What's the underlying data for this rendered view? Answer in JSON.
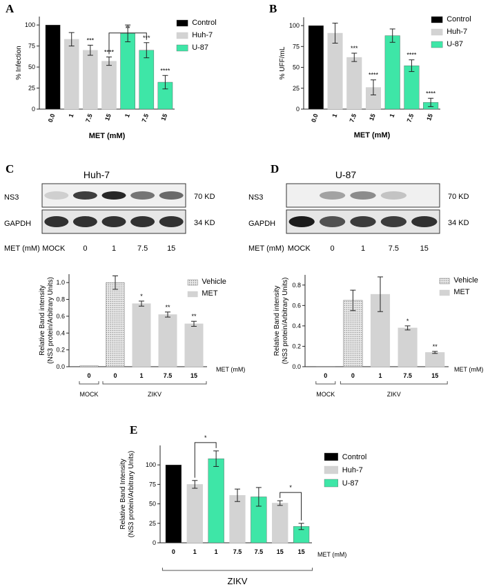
{
  "colors": {
    "control": "#000000",
    "huh7": "#d3d3d3",
    "u87": "#3ee6a7",
    "vehicle": "#d8d8d8"
  },
  "chart_data": [
    {
      "panel": "A",
      "type": "bar",
      "categories": [
        "0.0",
        "1",
        "7.5",
        "15",
        "1",
        "7.5",
        "15"
      ],
      "groups": [
        "Control",
        "Huh-7",
        "Huh-7",
        "Huh-7",
        "U-87",
        "U-87",
        "U-87"
      ],
      "values": [
        100,
        83,
        70,
        57,
        90,
        70,
        32
      ],
      "errors": [
        0,
        8,
        6,
        5,
        10,
        9,
        8
      ],
      "sig": [
        "",
        "",
        "***",
        "****",
        "",
        "***",
        "****"
      ],
      "bracket": {
        "from": 3,
        "to": 5,
        "label": "**"
      },
      "ylabel": "% Infection",
      "xlabel": "MET (mM)",
      "ylim": [
        0,
        110
      ],
      "yticks": [
        "0",
        "25",
        "50",
        "75",
        "100"
      ],
      "legend": [
        "Control",
        "Huh-7",
        "U-87"
      ]
    },
    {
      "panel": "B",
      "type": "bar",
      "categories": [
        "0.0",
        "1",
        "7.5",
        "15",
        "1",
        "7.5",
        "15"
      ],
      "groups": [
        "Control",
        "Huh-7",
        "Huh-7",
        "Huh-7",
        "U-87",
        "U-87",
        "U-87"
      ],
      "values": [
        100,
        91,
        62,
        26,
        88,
        52,
        8
      ],
      "errors": [
        0,
        12,
        5,
        9,
        8,
        7,
        5
      ],
      "sig": [
        "",
        "",
        "***",
        "****",
        "",
        "****",
        "****"
      ],
      "ylabel": "% UFF/mL",
      "xlabel": "MET (mM)",
      "ylim": [
        0,
        110
      ],
      "yticks": [
        "0",
        "25",
        "50",
        "75",
        "100"
      ],
      "legend": [
        "Control",
        "Huh-7",
        "U-87"
      ]
    },
    {
      "panel": "C",
      "type": "bar",
      "categories": [
        "0",
        "0",
        "1",
        "7.5",
        "15"
      ],
      "groups": [
        "Vehicle",
        "Vehicle",
        "MET",
        "MET",
        "MET"
      ],
      "values": [
        0.01,
        1.0,
        0.75,
        0.62,
        0.51
      ],
      "errors": [
        0,
        0.08,
        0.03,
        0.03,
        0.03
      ],
      "sig": [
        "",
        "",
        "*",
        "**",
        "**"
      ],
      "ylabel": "Relative Band intensity",
      "ylabel2": "(NS3 protein/Arbitrary Units)",
      "xlabel": "MET (mM)",
      "ylim": [
        0,
        1.1
      ],
      "yticks": [
        "0.0",
        "0.2",
        "0.4",
        "0.6",
        "0.8",
        "1.0"
      ],
      "legend": [
        "Vehicle",
        "MET"
      ],
      "groupings": [
        "MOCK",
        "ZIKV"
      ]
    },
    {
      "panel": "D",
      "type": "bar",
      "categories": [
        "0",
        "0",
        "1",
        "7.5",
        "15"
      ],
      "groups": [
        "Vehicle",
        "Vehicle",
        "MET",
        "MET",
        "MET"
      ],
      "values": [
        0.0,
        0.65,
        0.71,
        0.38,
        0.14
      ],
      "errors": [
        0,
        0.1,
        0.17,
        0.02,
        0.01
      ],
      "sig": [
        "",
        "",
        "",
        "*",
        "**"
      ],
      "ylabel": "Relative Band intensity",
      "ylabel2": "(NS3 protein/Arbitrary Units)",
      "xlabel": "MET (mM)",
      "ylim": [
        0,
        0.9
      ],
      "yticks": [
        "0.0",
        "0.2",
        "0.4",
        "0.6",
        "0.8"
      ],
      "legend": [
        "Vehicle",
        "MET"
      ],
      "groupings": [
        "MOCK",
        "ZIKV"
      ]
    },
    {
      "panel": "E",
      "type": "bar",
      "categories": [
        "0",
        "1",
        "1",
        "7.5",
        "7.5",
        "15",
        "15"
      ],
      "groups": [
        "Control",
        "Huh-7",
        "U-87",
        "Huh-7",
        "U-87",
        "Huh-7",
        "U-87"
      ],
      "values": [
        100,
        75,
        108,
        61,
        59,
        51,
        21
      ],
      "errors": [
        0,
        5,
        10,
        8,
        12,
        3,
        4
      ],
      "brackets": [
        {
          "from": 1,
          "to": 2,
          "label": "*"
        },
        {
          "from": 5,
          "to": 6,
          "label": "*"
        }
      ],
      "ylabel": "Relative Band Intensity",
      "ylabel2": "(NS3 protein/Arbitrary Units)",
      "xlabel": "MET (mM)",
      "ylim": [
        0,
        125
      ],
      "yticks": [
        "0",
        "25",
        "50",
        "75",
        "100"
      ],
      "legend": [
        "Control",
        "Huh-7",
        "U-87"
      ],
      "groupings": [
        "ZIKV"
      ]
    }
  ],
  "blots": {
    "C": {
      "title": "Huh-7",
      "rows": [
        {
          "name": "NS3",
          "kd": "70 KD"
        },
        {
          "name": "GAPDH",
          "kd": "34 KD"
        }
      ],
      "met_label": "MET (mM)",
      "lanes": [
        "MOCK",
        "0",
        "1",
        "7.5",
        "15"
      ]
    },
    "D": {
      "title": "U-87",
      "rows": [
        {
          "name": "NS3",
          "kd": "70 KD"
        },
        {
          "name": "GAPDH",
          "kd": "34 KD"
        }
      ],
      "met_label": "MET (mM)",
      "lanes": [
        "MOCK",
        "0",
        "1",
        "7.5",
        "15"
      ]
    }
  }
}
